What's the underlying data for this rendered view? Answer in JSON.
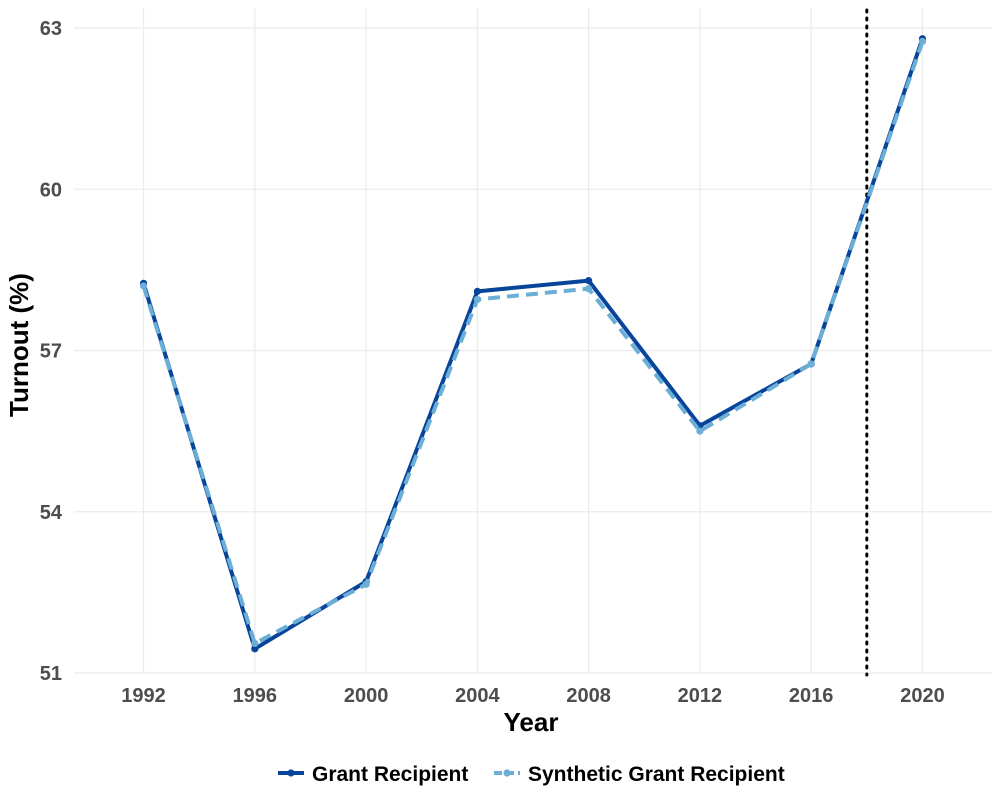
{
  "chart_data": {
    "type": "line",
    "title": "",
    "xlabel": "Year",
    "ylabel": "Turnout (%)",
    "x": [
      1992,
      1996,
      2000,
      2004,
      2008,
      2012,
      2016,
      2020
    ],
    "x_ticks": [
      "1992",
      "1996",
      "2000",
      "2004",
      "2008",
      "2012",
      "2016",
      "2020"
    ],
    "y_ticks": [
      "51",
      "54",
      "57",
      "60",
      "63"
    ],
    "xlim": [
      1989.5,
      2022.5
    ],
    "ylim": [
      51,
      63
    ],
    "grid": true,
    "legend_position": "bottom",
    "vline": {
      "x": 2018,
      "style": "dotted",
      "color": "#000000"
    },
    "series": [
      {
        "name": "Grant Recipient",
        "color": "#08449a",
        "style": "solid",
        "values": [
          58.25,
          51.45,
          52.7,
          58.1,
          58.3,
          55.6,
          56.75,
          62.8
        ]
      },
      {
        "name": "Synthetic Grant Recipient",
        "color": "#6baed6",
        "style": "dashed",
        "values": [
          58.2,
          51.55,
          52.65,
          57.95,
          58.15,
          55.5,
          56.75,
          62.75
        ]
      }
    ]
  }
}
